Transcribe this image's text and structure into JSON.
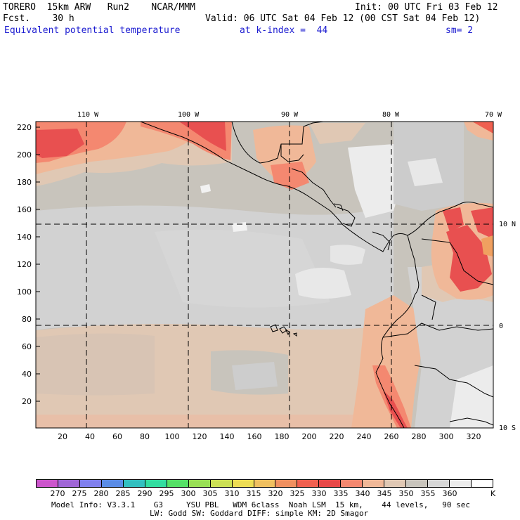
{
  "header": {
    "line1_left": "TORERO  15km ARW   Run2    NCAR/MMM",
    "line1_right": "Init: 00 UTC Fri 03 Feb 12",
    "line2_left": "Fcst.    30 h",
    "line2_right": "Valid: 06 UTC Sat 04 Feb 12 (00 CST Sat 04 Feb 12)",
    "line3_var": "Equivalent potential temperature",
    "line3_level": "at k-index =  44",
    "line3_sm": "sm= 2"
  },
  "lon_labels": [
    "110 W",
    "100 W",
    "90 W",
    "80 W",
    "70 W"
  ],
  "lat_labels": [
    "10 N",
    "0",
    "10 S"
  ],
  "y_ticks": [
    "220",
    "200",
    "180",
    "160",
    "140",
    "120",
    "100",
    "80",
    "60",
    "40",
    "20"
  ],
  "x_ticks": [
    "20",
    "40",
    "60",
    "80",
    "100",
    "120",
    "140",
    "160",
    "180",
    "200",
    "220",
    "240",
    "260",
    "280",
    "300",
    "320"
  ],
  "colorbar": {
    "colors": [
      "#cc55cc",
      "#a066d6",
      "#8080ee",
      "#5a8ce6",
      "#33c0c0",
      "#33dda0",
      "#55e066",
      "#99e055",
      "#cce055",
      "#eedd55",
      "#f0c060",
      "#f09060",
      "#f06050",
      "#e84848",
      "#f48870",
      "#f0b898",
      "#e0c8b4",
      "#c8c4bc",
      "#d6d6d6",
      "#ececec",
      "#ffffff"
    ],
    "labels": [
      "270",
      "275",
      "280",
      "285",
      "290",
      "295",
      "300",
      "305",
      "310",
      "315",
      "320",
      "325",
      "330",
      "335",
      "340",
      "345",
      "350",
      "355",
      "360"
    ],
    "unit": "K"
  },
  "footer": {
    "line1": "Model Info: V3.3.1    G3     YSU PBL   WDM 6class  Noah LSM  15 km,    44 levels,   90 sec",
    "line2": "LW: Godd SW: Goddard DIFF: simple KM: 2D Smagor"
  }
}
